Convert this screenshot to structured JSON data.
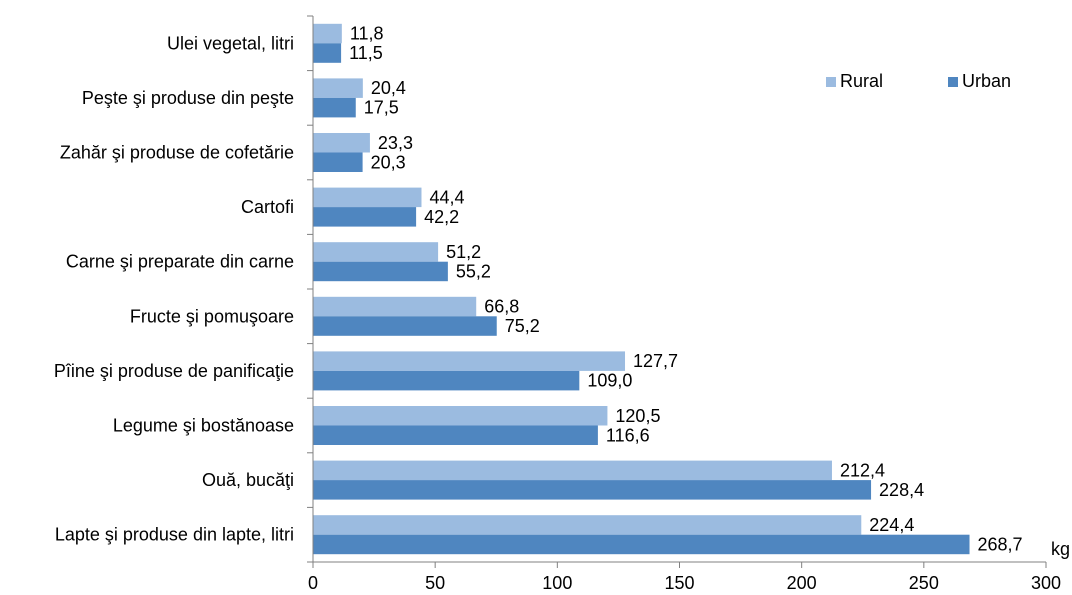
{
  "chart_data": {
    "type": "bar",
    "orientation": "horizontal",
    "categories": [
      "Ulei vegetal, litri",
      "Peşte şi produse din peşte",
      "Zahăr şi produse de cofetărie",
      "Cartofi",
      "Carne şi preparate din carne",
      "Fructe şi pomuşoare",
      "Pîine şi produse de panificaţie",
      "Legume şi bostănoase",
      "Ouă, bucăţi",
      "Lapte şi produse din lapte, litri"
    ],
    "series": [
      {
        "name": "Rural",
        "color": "#9bbbe0",
        "values": [
          11.8,
          20.4,
          23.3,
          44.4,
          51.2,
          66.8,
          127.7,
          120.5,
          212.4,
          224.4
        ],
        "labels": [
          "11,8",
          "20,4",
          "23,3",
          "44,4",
          "51,2",
          "66,8",
          "127,7",
          "120,5",
          "212,4",
          "224,4"
        ]
      },
      {
        "name": "Urban",
        "color": "#4f86c0",
        "values": [
          11.5,
          17.5,
          20.3,
          42.2,
          55.2,
          75.2,
          109.0,
          116.6,
          228.4,
          268.7
        ],
        "labels": [
          "11,5",
          "17,5",
          "20,3",
          "42,2",
          "55,2",
          "75,2",
          "109,0",
          "116,6",
          "228,4",
          "268,7"
        ]
      }
    ],
    "xlim": [
      0,
      300
    ],
    "xticks": [
      0,
      50,
      100,
      150,
      200,
      250,
      300
    ],
    "unit_label": "kg",
    "legend_position": "top-right",
    "grid": false
  }
}
